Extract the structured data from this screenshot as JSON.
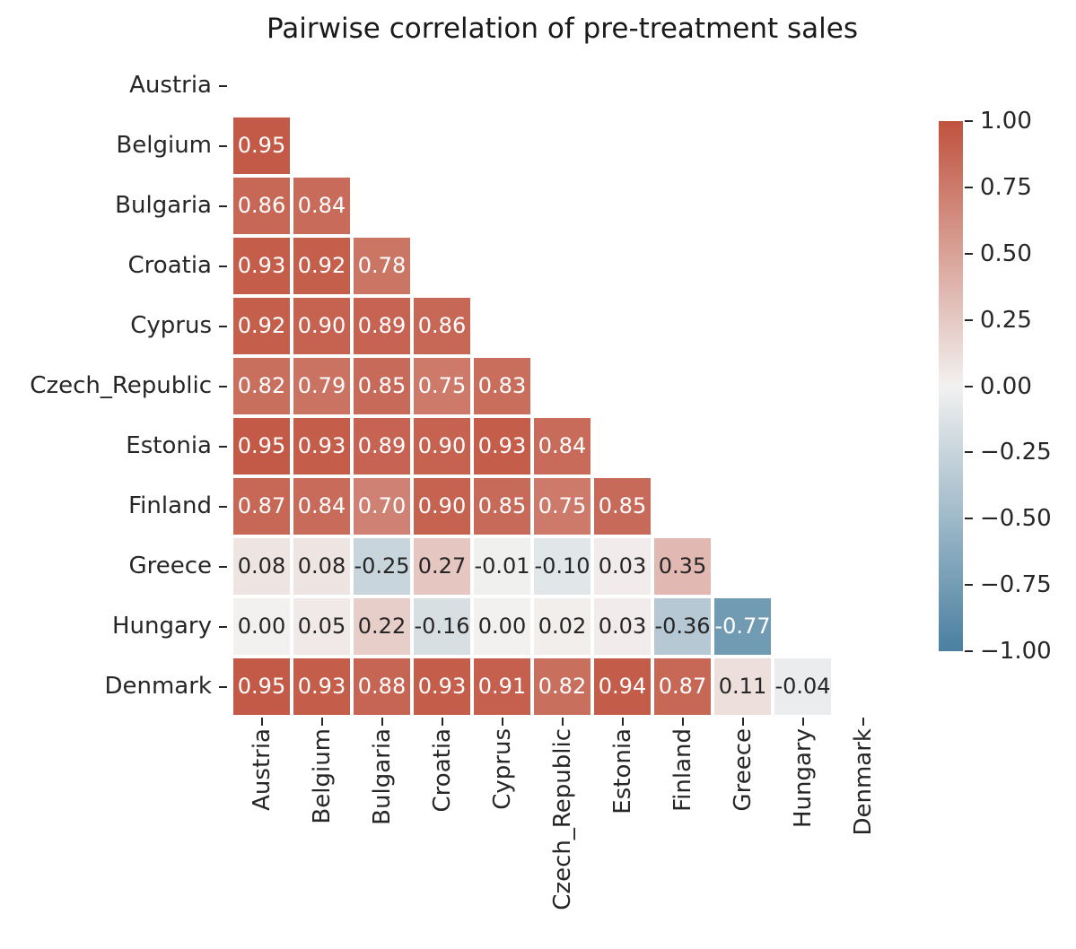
{
  "chart_data": {
    "type": "heatmap",
    "title": "Pairwise correlation of pre-treatment sales",
    "categories": [
      "Austria",
      "Belgium",
      "Bulgaria",
      "Croatia",
      "Cyprus",
      "Czech_Republic",
      "Estonia",
      "Finland",
      "Greece",
      "Hungary",
      "Denmark"
    ],
    "mask": "upper triangle including diagonal is hidden; only lower-triangle pairwise cells are drawn",
    "value_format": ".2f",
    "rows": [
      {
        "label": "Austria",
        "values": []
      },
      {
        "label": "Belgium",
        "values": [
          0.95
        ]
      },
      {
        "label": "Bulgaria",
        "values": [
          0.86,
          0.84
        ]
      },
      {
        "label": "Croatia",
        "values": [
          0.93,
          0.92,
          0.78
        ]
      },
      {
        "label": "Cyprus",
        "values": [
          0.92,
          0.9,
          0.89,
          0.86
        ]
      },
      {
        "label": "Czech_Republic",
        "values": [
          0.82,
          0.79,
          0.85,
          0.75,
          0.83
        ]
      },
      {
        "label": "Estonia",
        "values": [
          0.95,
          0.93,
          0.89,
          0.9,
          0.93,
          0.84
        ]
      },
      {
        "label": "Finland",
        "values": [
          0.87,
          0.84,
          0.7,
          0.9,
          0.85,
          0.75,
          0.85
        ]
      },
      {
        "label": "Greece",
        "values": [
          0.08,
          0.08,
          -0.25,
          0.27,
          -0.01,
          -0.1,
          0.03,
          0.35
        ]
      },
      {
        "label": "Hungary",
        "values": [
          0.0,
          0.05,
          0.22,
          -0.16,
          0.0,
          0.02,
          0.03,
          -0.36,
          -0.77
        ]
      },
      {
        "label": "Denmark",
        "values": [
          0.95,
          0.93,
          0.88,
          0.93,
          0.91,
          0.82,
          0.94,
          0.87,
          0.11,
          -0.04
        ]
      }
    ],
    "colorbar": {
      "position": "right",
      "vmin": -1,
      "vmax": 1,
      "tick_values": [
        1.0,
        0.75,
        0.5,
        0.25,
        0.0,
        -0.25,
        -0.5,
        -0.75,
        -1.0
      ],
      "tick_labels": [
        "1.00",
        "0.75",
        "0.50",
        "0.25",
        "0.00",
        "−0.25",
        "−0.50",
        "−0.75",
        "−1.00"
      ]
    },
    "colors": {
      "max": "#c0523e",
      "mid": "#f2f1f0",
      "min": "#4a80a1",
      "annot_light": "#ffffff",
      "annot_dark": "#262626",
      "tick_text": "#262626",
      "background": "#ffffff"
    },
    "grid": false
  }
}
